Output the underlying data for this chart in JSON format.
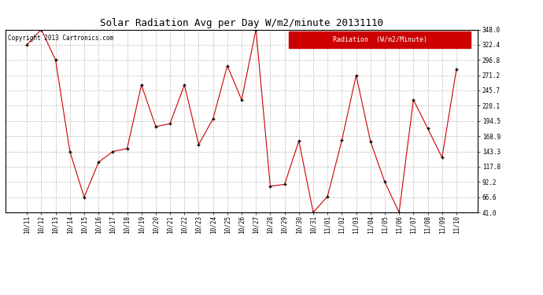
{
  "title": "Solar Radiation Avg per Day W/m2/minute 20131110",
  "copyright": "Copyright 2013 Cartronics.com",
  "legend_label": "Radiation  (W/m2/Minute)",
  "background_color": "#ffffff",
  "plot_bg_color": "#ffffff",
  "grid_color": "#bbbbbb",
  "line_color": "#cc0000",
  "marker_color": "#000000",
  "legend_bg": "#cc0000",
  "legend_fg": "#ffffff",
  "dates": [
    "10/11",
    "10/12",
    "10/13",
    "10/14",
    "10/15",
    "10/16",
    "10/17",
    "10/18",
    "10/19",
    "10/20",
    "10/21",
    "10/22",
    "10/23",
    "10/24",
    "10/25",
    "10/26",
    "10/27",
    "10/28",
    "10/29",
    "10/30",
    "10/31",
    "11/01",
    "11/02",
    "11/03",
    "11/04",
    "11/05",
    "11/06",
    "11/07",
    "11/08",
    "11/09",
    "11/10"
  ],
  "values": [
    322.4,
    348.0,
    296.8,
    143.3,
    66.6,
    125.0,
    143.3,
    148.0,
    255.0,
    185.0,
    190.0,
    255.0,
    155.0,
    198.0,
    287.0,
    230.0,
    348.0,
    85.0,
    88.0,
    161.0,
    41.0,
    68.0,
    162.0,
    271.0,
    160.0,
    92.0,
    41.0,
    230.0,
    182.0,
    133.0,
    281.0
  ],
  "ylim": [
    41.0,
    348.0
  ],
  "yticks": [
    41.0,
    66.6,
    92.2,
    117.8,
    143.3,
    168.9,
    194.5,
    220.1,
    245.7,
    271.2,
    296.8,
    322.4,
    348.0
  ],
  "title_fontsize": 9,
  "tick_fontsize": 5.5,
  "copyright_fontsize": 5.5,
  "legend_fontsize": 6
}
